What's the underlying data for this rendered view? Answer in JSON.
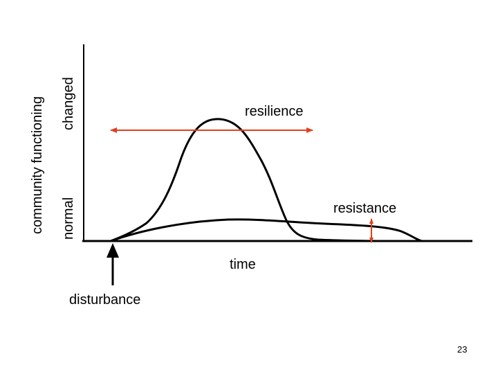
{
  "diagram": {
    "y_axis_label": "community functioning",
    "y_axis_high": "changed",
    "y_axis_low": "normal",
    "x_axis_label": "time",
    "curve_high_label": "resilience",
    "curve_low_label": "resistance",
    "event_label": "disturbance",
    "colors": {
      "curves": "#000000",
      "arrows": "#e0401f"
    }
  },
  "page_number": "23"
}
